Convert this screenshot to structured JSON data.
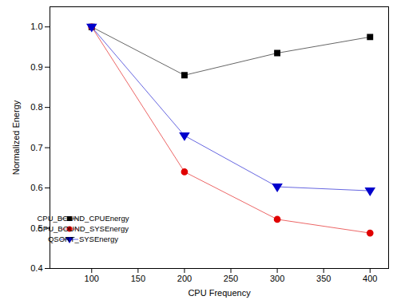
{
  "chart_data": {
    "type": "line",
    "x_label": "CPU Frequency",
    "y_label": "Normalized Energy",
    "x": [
      100,
      200,
      300,
      400
    ],
    "series": [
      {
        "name": "CPU_BOUND_CPUEnergy",
        "color": "#000000",
        "marker": "square",
        "values": [
          1.0,
          0.88,
          0.935,
          0.975
        ]
      },
      {
        "name": "CPU_BOUND_SYSEnergy",
        "color": "#e00000",
        "marker": "circle",
        "values": [
          1.0,
          0.64,
          0.522,
          0.488
        ]
      },
      {
        "name": "QSORT_SYSEnergy",
        "color": "#0000cc",
        "marker": "triangle-down",
        "values": [
          1.0,
          0.73,
          0.603,
          0.593
        ]
      }
    ],
    "xlim": [
      55,
      420
    ],
    "xticks": [
      100,
      150,
      200,
      250,
      300,
      350,
      400
    ],
    "ylim": [
      0.4,
      1.05
    ],
    "yticks": [
      0.4,
      0.5,
      0.6,
      0.7,
      0.8,
      0.9,
      {
        "value": 1,
        "label": "1.0"
      }
    ],
    "grid": false,
    "legend": "bottom-left"
  }
}
